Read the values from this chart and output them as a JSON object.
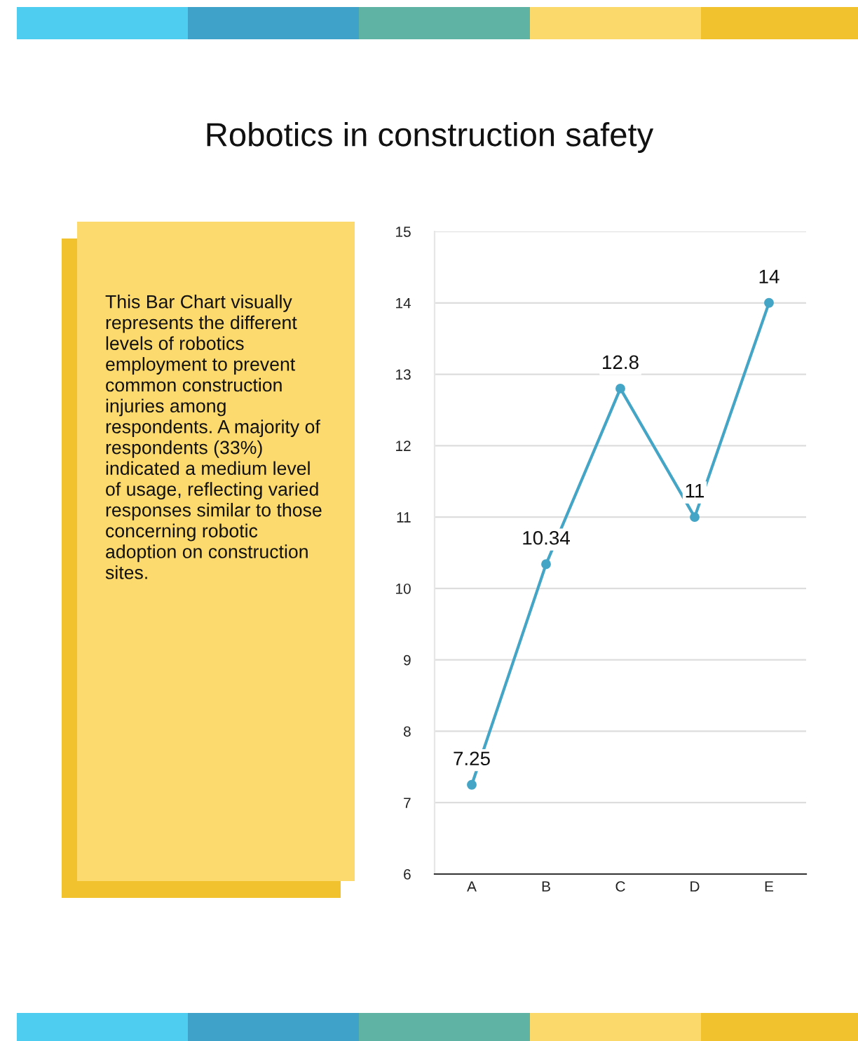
{
  "chart_data": {
    "type": "line",
    "title": "Robotics in construction safety",
    "annotations": [
      "This Bar Chart visually represents the different levels of robotics employment to prevent common construction injuries among respondents. A majority of respondents (33%) indicated a medium level of usage, reflecting varied responses similar to those concerning robotic adoption on construction sites."
    ],
    "categories": [
      "A",
      "B",
      "C",
      "D",
      "E"
    ],
    "series": [
      {
        "color": "#45a5c6",
        "values": [
          7.25,
          10.34,
          12.8,
          11,
          14
        ]
      }
    ],
    "ylim": [
      6,
      15
    ],
    "yticks": [
      6,
      7,
      8,
      9,
      10,
      11,
      12,
      13,
      14,
      15
    ],
    "grid": "y",
    "marker": "circle",
    "line_style": "solid",
    "data_labels": true
  }
}
